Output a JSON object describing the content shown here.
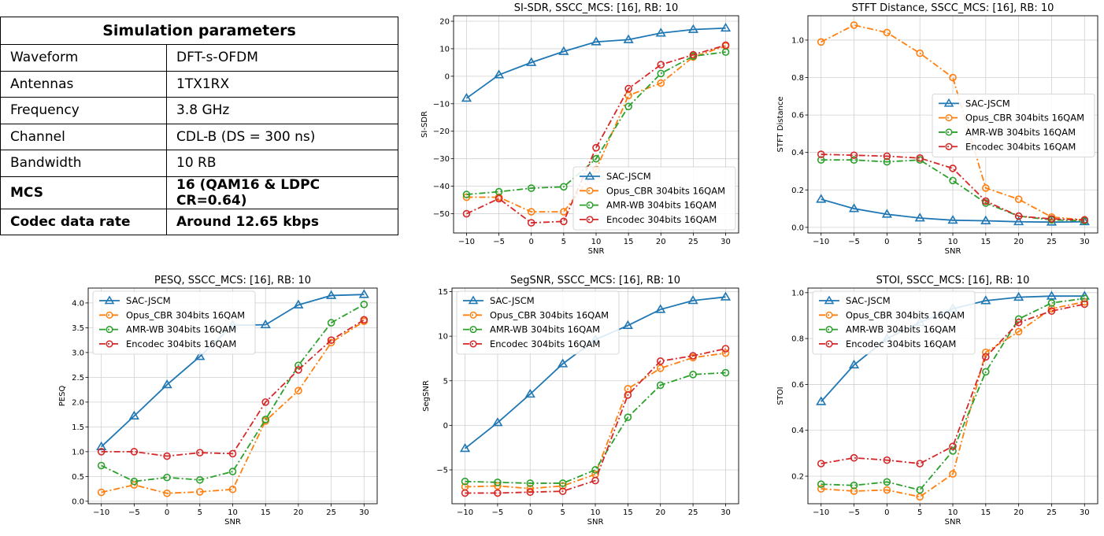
{
  "table": {
    "title": "Simulation parameters",
    "rows": [
      {
        "label": "Waveform",
        "value": "DFT-s-OFDM",
        "bold": false
      },
      {
        "label": "Antennas",
        "value": "1TX1RX",
        "bold": false
      },
      {
        "label": "Frequency",
        "value": "3.8 GHz",
        "bold": false
      },
      {
        "label": "Channel",
        "value": "CDL-B (DS = 300 ns)",
        "bold": false
      },
      {
        "label": "Bandwidth",
        "value": "10 RB",
        "bold": false
      },
      {
        "label": "MCS",
        "value": "16 (QAM16 & LDPC CR=0.64)",
        "bold": true
      },
      {
        "label": "Codec data rate",
        "value": "Around 12.65 kbps",
        "bold": true
      }
    ]
  },
  "colors": {
    "SAC-JSCM": "#1f77b4",
    "Opus_CBR 304bits 16QAM": "#ff7f0e",
    "AMR-WB 304bits 16QAM": "#2ca02c",
    "Encodec 304bits 16QAM": "#d62728"
  },
  "chart_data": [
    {
      "id": "sisdr",
      "type": "line",
      "title": "SI-SDR, SSCC_MCS: [16], RB: 10",
      "xlabel": "SNR",
      "ylabel": "SI-SDR",
      "x": [
        -10,
        -5,
        0,
        5,
        10,
        15,
        20,
        25,
        30
      ],
      "xlim": [
        -12,
        32
      ],
      "ylim": [
        -57,
        22
      ],
      "yticks": [
        20,
        10,
        0,
        -10,
        -20,
        -30,
        -40,
        -50
      ],
      "yticklabels": [
        "20",
        "10",
        "0",
        "−10",
        "−20",
        "−30",
        "−40",
        "−50"
      ],
      "legend": "lower-right",
      "grid": true,
      "series": [
        {
          "name": "SAC-JSCM",
          "values": [
            -8,
            0.5,
            5,
            9,
            12.5,
            13.3,
            15.7,
            17,
            17.5
          ]
        },
        {
          "name": "Opus_CBR 304bits 16QAM",
          "values": [
            -44,
            -44,
            -49.3,
            -49.3,
            -34,
            -7,
            -2.5,
            7,
            11
          ]
        },
        {
          "name": "AMR-WB 304bits 16QAM",
          "values": [
            -43,
            -42,
            -40.7,
            -40.2,
            -30,
            -11,
            1,
            7.3,
            8.8
          ]
        },
        {
          "name": "Encodec 304bits 16QAM",
          "values": [
            -50,
            -44.5,
            -53.3,
            -52.8,
            -26,
            -4.5,
            4.2,
            7.8,
            11.3
          ]
        }
      ]
    },
    {
      "id": "stft",
      "type": "line",
      "title": "STFT Distance, SSCC_MCS: [16], RB: 10",
      "xlabel": "SNR",
      "ylabel": "STFT Distance",
      "x": [
        -10,
        -5,
        0,
        5,
        10,
        15,
        20,
        25,
        30
      ],
      "xlim": [
        -12,
        32
      ],
      "ylim": [
        -0.03,
        1.13
      ],
      "yticks": [
        0,
        0.2,
        0.4,
        0.6,
        0.8,
        1.0
      ],
      "yticklabels": [
        "0.0",
        "0.2",
        "0.4",
        "0.6",
        "0.8",
        "1.0"
      ],
      "legend": "center-right",
      "grid": true,
      "series": [
        {
          "name": "SAC-JSCM",
          "values": [
            0.15,
            0.1,
            0.07,
            0.05,
            0.038,
            0.035,
            0.03,
            0.028,
            0.03
          ]
        },
        {
          "name": "Opus_CBR 304bits 16QAM",
          "values": [
            0.99,
            1.08,
            1.04,
            0.93,
            0.8,
            0.21,
            0.15,
            0.055,
            0.04
          ]
        },
        {
          "name": "AMR-WB 304bits 16QAM",
          "values": [
            0.36,
            0.36,
            0.35,
            0.36,
            0.25,
            0.13,
            0.06,
            0.04,
            0.035
          ]
        },
        {
          "name": "Encodec 304bits 16QAM",
          "values": [
            0.39,
            0.385,
            0.38,
            0.37,
            0.315,
            0.14,
            0.06,
            0.045,
            0.04
          ]
        }
      ]
    },
    {
      "id": "pesq",
      "type": "line",
      "title": "PESQ, SSCC_MCS: [16], RB: 10",
      "xlabel": "SNR",
      "ylabel": "PESQ",
      "x": [
        -10,
        -5,
        0,
        5,
        10,
        15,
        20,
        25,
        30
      ],
      "xlim": [
        -12,
        32
      ],
      "ylim": [
        -0.05,
        4.3
      ],
      "yticks": [
        0,
        0.5,
        1.0,
        1.5,
        2.0,
        2.5,
        3.0,
        3.5,
        4.0
      ],
      "yticklabels": [
        "0.0",
        "0.5",
        "1.0",
        "1.5",
        "2.0",
        "2.5",
        "3.0",
        "3.5",
        "4.0"
      ],
      "legend": "upper-left",
      "grid": true,
      "series": [
        {
          "name": "SAC-JSCM",
          "values": [
            1.1,
            1.72,
            2.35,
            2.92,
            3.55,
            3.56,
            3.96,
            4.15,
            4.17
          ]
        },
        {
          "name": "Opus_CBR 304bits 16QAM",
          "values": [
            0.18,
            0.33,
            0.16,
            0.19,
            0.24,
            1.62,
            2.23,
            3.2,
            3.63
          ]
        },
        {
          "name": "AMR-WB 304bits 16QAM",
          "values": [
            0.72,
            0.4,
            0.48,
            0.43,
            0.6,
            1.65,
            2.74,
            3.6,
            3.97
          ]
        },
        {
          "name": "Encodec 304bits 16QAM",
          "values": [
            1.0,
            1.0,
            0.91,
            0.98,
            0.96,
            2.0,
            2.65,
            3.25,
            3.66
          ]
        }
      ]
    },
    {
      "id": "segsnr",
      "type": "line",
      "title": "SegSNR, SSCC_MCS: [16], RB: 10",
      "xlabel": "SNR",
      "ylabel": "SegSNR",
      "x": [
        -10,
        -5,
        0,
        5,
        10,
        15,
        20,
        25,
        30
      ],
      "xlim": [
        -12,
        32
      ],
      "ylim": [
        -8.8,
        15.4
      ],
      "yticks": [
        15,
        10,
        5,
        0,
        -5
      ],
      "yticklabels": [
        "15",
        "10",
        "5",
        "0",
        "−5"
      ],
      "legend": "upper-left",
      "grid": true,
      "series": [
        {
          "name": "SAC-JSCM",
          "values": [
            -2.6,
            0.3,
            3.5,
            6.9,
            9.6,
            11.2,
            13.0,
            14.0,
            14.4
          ]
        },
        {
          "name": "Opus_CBR 304bits 16QAM",
          "values": [
            -6.9,
            -6.8,
            -7.1,
            -6.8,
            -5.5,
            4.1,
            6.4,
            7.6,
            8.1
          ]
        },
        {
          "name": "AMR-WB 304bits 16QAM",
          "values": [
            -6.3,
            -6.4,
            -6.5,
            -6.5,
            -5.0,
            0.9,
            4.5,
            5.7,
            5.9
          ]
        },
        {
          "name": "Encodec 304bits 16QAM",
          "values": [
            -7.6,
            -7.6,
            -7.5,
            -7.4,
            -6.2,
            3.4,
            7.2,
            7.8,
            8.6
          ]
        }
      ]
    },
    {
      "id": "stoi",
      "type": "line",
      "title": "STOI, SSCC_MCS: [16], RB: 10",
      "xlabel": "SNR",
      "ylabel": "STOI",
      "x": [
        -10,
        -5,
        0,
        5,
        10,
        15,
        20,
        25,
        30
      ],
      "xlim": [
        -12,
        32
      ],
      "ylim": [
        0.08,
        1.02
      ],
      "yticks": [
        0.2,
        0.4,
        0.6,
        0.8,
        1.0
      ],
      "yticklabels": [
        "0.2",
        "0.4",
        "0.6",
        "0.8",
        "1.0"
      ],
      "legend": "upper-left",
      "grid": true,
      "series": [
        {
          "name": "SAC-JSCM",
          "values": [
            0.525,
            0.685,
            0.8,
            0.87,
            0.93,
            0.965,
            0.98,
            0.985,
            0.985
          ]
        },
        {
          "name": "Opus_CBR 304bits 16QAM",
          "values": [
            0.145,
            0.135,
            0.14,
            0.11,
            0.21,
            0.74,
            0.83,
            0.93,
            0.96
          ]
        },
        {
          "name": "AMR-WB 304bits 16QAM",
          "values": [
            0.165,
            0.16,
            0.175,
            0.14,
            0.31,
            0.655,
            0.885,
            0.955,
            0.975
          ]
        },
        {
          "name": "Encodec 304bits 16QAM",
          "values": [
            0.255,
            0.28,
            0.27,
            0.255,
            0.33,
            0.72,
            0.87,
            0.92,
            0.95
          ]
        }
      ]
    }
  ]
}
